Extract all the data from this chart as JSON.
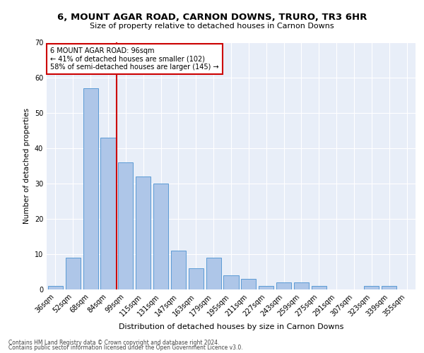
{
  "title": "6, MOUNT AGAR ROAD, CARNON DOWNS, TRURO, TR3 6HR",
  "subtitle": "Size of property relative to detached houses in Carnon Downs",
  "xlabel": "Distribution of detached houses by size in Carnon Downs",
  "ylabel": "Number of detached properties",
  "categories": [
    "36sqm",
    "52sqm",
    "68sqm",
    "84sqm",
    "99sqm",
    "115sqm",
    "131sqm",
    "147sqm",
    "163sqm",
    "179sqm",
    "195sqm",
    "211sqm",
    "227sqm",
    "243sqm",
    "259sqm",
    "275sqm",
    "291sqm",
    "307sqm",
    "323sqm",
    "339sqm",
    "355sqm"
  ],
  "values": [
    1,
    9,
    57,
    43,
    36,
    32,
    30,
    11,
    6,
    9,
    4,
    3,
    1,
    2,
    2,
    1,
    0,
    0,
    1,
    1,
    0
  ],
  "bar_color": "#aec6e8",
  "bar_edge_color": "#5b9bd5",
  "vline_color": "#cc0000",
  "annotation_text": "6 MOUNT AGAR ROAD: 96sqm\n← 41% of detached houses are smaller (102)\n58% of semi-detached houses are larger (145) →",
  "annotation_box_color": "#ffffff",
  "annotation_box_edge": "#cc0000",
  "ylim": [
    0,
    70
  ],
  "yticks": [
    0,
    10,
    20,
    30,
    40,
    50,
    60,
    70
  ],
  "background_color": "#e8eef8",
  "footer1": "Contains HM Land Registry data © Crown copyright and database right 2024.",
  "footer2": "Contains public sector information licensed under the Open Government Licence v3.0."
}
